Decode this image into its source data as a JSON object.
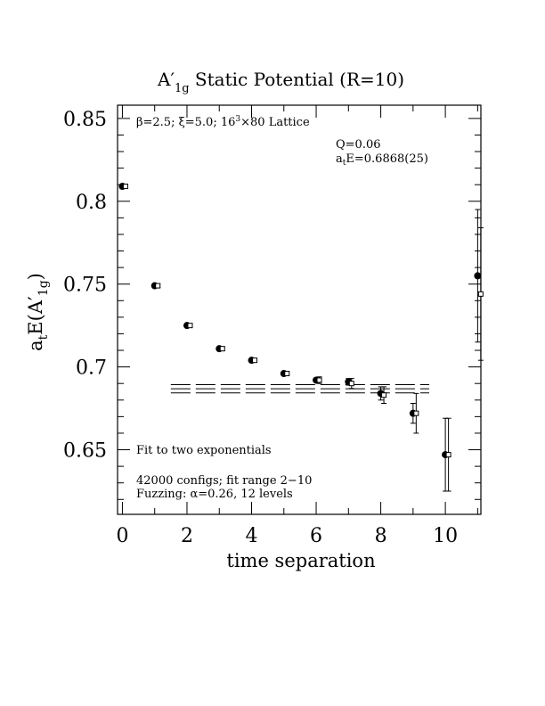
{
  "chart_data": {
    "type": "scatter",
    "title": "A′",
    "title_sub": "1g",
    "title_rest": " Static Potential (R=10)",
    "xlabel": "time separation",
    "ylabel_main": "a",
    "ylabel_sub_t": "t",
    "ylabel_mid": "E(A′",
    "ylabel_sub_1g": "1g",
    "ylabel_close": ")",
    "xlim": [
      -0.15,
      11.1
    ],
    "ylim": [
      0.611,
      0.858
    ],
    "x_ticks": [
      0,
      2,
      4,
      6,
      8,
      10
    ],
    "x_tick_labels": [
      "0",
      "2",
      "4",
      "6",
      "8",
      "10"
    ],
    "y_ticks": [
      0.65,
      0.7,
      0.75,
      0.8,
      0.85
    ],
    "y_tick_labels": [
      "0.65",
      "0.7",
      "0.75",
      "0.8",
      "0.85"
    ],
    "annotations": {
      "lattice_beta": "β=2.5; ξ=5.0; 16",
      "lattice_sup": "3",
      "lattice_rest": "×80 Lattice",
      "q_value": "Q=0.06",
      "energy_a": "a",
      "energy_sub": "t",
      "energy_rest": "E=0.6868(25)",
      "fit_text": "Fit to two exponentials",
      "configs": "42000 configs; fit range 2−10",
      "fuzzing": "Fuzzing: α=0.26, 12 levels"
    },
    "series": [
      {
        "marker": "filled-circle",
        "points": [
          {
            "x": 0,
            "y": 0.809,
            "err": 0.001
          },
          {
            "x": 1,
            "y": 0.749,
            "err": 0.001
          },
          {
            "x": 2,
            "y": 0.725,
            "err": 0.001
          },
          {
            "x": 3,
            "y": 0.711,
            "err": 0.001
          },
          {
            "x": 4,
            "y": 0.704,
            "err": 0.001
          },
          {
            "x": 5,
            "y": 0.696,
            "err": 0.001
          },
          {
            "x": 6,
            "y": 0.692,
            "err": 0.001
          },
          {
            "x": 7,
            "y": 0.691,
            "err": 0.002
          },
          {
            "x": 8,
            "y": 0.684,
            "err": 0.004
          },
          {
            "x": 9,
            "y": 0.672,
            "err": 0.006
          },
          {
            "x": 10,
            "y": 0.647,
            "err": 0.022
          },
          {
            "x": 11,
            "y": 0.755,
            "err": 0.04
          }
        ]
      },
      {
        "marker": "open-square",
        "points": [
          {
            "x": 0,
            "y": 0.809,
            "err": 0.001
          },
          {
            "x": 1,
            "y": 0.749,
            "err": 0.001
          },
          {
            "x": 2,
            "y": 0.725,
            "err": 0.001
          },
          {
            "x": 3,
            "y": 0.711,
            "err": 0.001
          },
          {
            "x": 4,
            "y": 0.704,
            "err": 0.001
          },
          {
            "x": 5,
            "y": 0.696,
            "err": 0.001
          },
          {
            "x": 6,
            "y": 0.692,
            "err": 0.002
          },
          {
            "x": 7,
            "y": 0.69,
            "err": 0.003
          },
          {
            "x": 8,
            "y": 0.683,
            "err": 0.005
          },
          {
            "x": 9,
            "y": 0.672,
            "err": 0.012
          },
          {
            "x": 10,
            "y": 0.647,
            "err": 0.022
          },
          {
            "x": 11,
            "y": 0.744,
            "err": 0.04
          }
        ]
      }
    ],
    "fit": {
      "value": 0.6868,
      "err": 0.0025,
      "x_range": [
        1.5,
        9.5
      ]
    },
    "grid": false
  }
}
